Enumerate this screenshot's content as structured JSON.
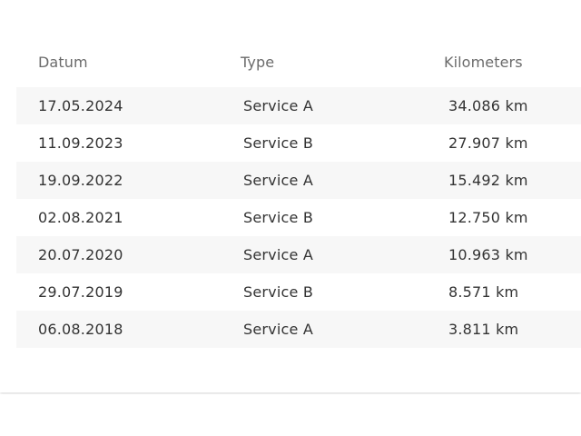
{
  "table": {
    "headers": {
      "date": "Datum",
      "type": "Type",
      "km": "Kilometers"
    },
    "rows": [
      {
        "date": "17.05.2024",
        "type": "Service A",
        "km": "34.086 km"
      },
      {
        "date": "11.09.2023",
        "type": "Service B",
        "km": "27.907 km"
      },
      {
        "date": "19.09.2022",
        "type": "Service A",
        "km": "15.492 km"
      },
      {
        "date": "02.08.2021",
        "type": "Service B",
        "km": "12.750 km"
      },
      {
        "date": "20.07.2020",
        "type": "Service A",
        "km": "10.963 km"
      },
      {
        "date": "29.07.2019",
        "type": "Service B",
        "km": "8.571 km"
      },
      {
        "date": "06.08.2018",
        "type": "Service A",
        "km": "3.811 km"
      }
    ]
  },
  "colors": {
    "shaded_row": "#f7f7f7",
    "header_text": "#6b6b6b",
    "body_text": "#333333"
  }
}
